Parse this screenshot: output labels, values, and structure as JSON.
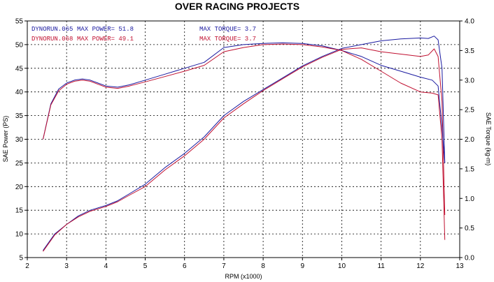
{
  "chart_data": {
    "type": "line",
    "title": "OVER RACING PROJECTS",
    "xlabel": "RPM  (x1000)",
    "ylabel_left": "SAE Power  (PS)",
    "ylabel_right": "SAE Torque  (kg-m)",
    "xlim": [
      2,
      13
    ],
    "ylim_left": [
      5,
      55
    ],
    "ylim_right": [
      0,
      4
    ],
    "x_ticks": [
      2,
      3,
      4,
      5,
      6,
      7,
      8,
      9,
      10,
      11,
      12,
      13
    ],
    "y_ticks_left": [
      5,
      10,
      15,
      20,
      25,
      30,
      35,
      40,
      45,
      50,
      55
    ],
    "y_ticks_right": [
      "0.0",
      "0.5",
      "1.0",
      "1.5",
      "2.0",
      "2.5",
      "3.0",
      "3.5",
      "4.0"
    ],
    "grid": true,
    "legend": [
      {
        "run": "DYNORUN.065",
        "power_text": "MAX POWER= 51.8",
        "torque_text": "MAX TORQUE= 3.7",
        "color": "#1a1aa0"
      },
      {
        "run": "DYNORUN.068",
        "power_text": "MAX POWER= 49.1",
        "torque_text": "MAX TORQUE= 3.7",
        "color": "#c01030"
      }
    ],
    "series": [
      {
        "name": "DYNORUN.065",
        "quantity": "power",
        "axis": "left",
        "color": "#1a1aa0",
        "x": [
          2.4,
          2.7,
          3.0,
          3.3,
          3.6,
          4.0,
          4.3,
          4.6,
          5.0,
          5.5,
          6.0,
          6.5,
          7.0,
          7.5,
          8.0,
          8.5,
          9.0,
          9.5,
          10.0,
          10.5,
          11.0,
          11.5,
          12.0,
          12.2,
          12.35,
          12.45,
          12.55,
          12.62
        ],
        "y": [
          6.5,
          10.0,
          12.0,
          13.8,
          15.0,
          16.0,
          17.0,
          18.5,
          20.5,
          24.0,
          27.0,
          30.5,
          35.0,
          38.0,
          40.5,
          43.0,
          45.5,
          47.5,
          49.2,
          50.0,
          50.8,
          51.2,
          51.4,
          51.3,
          51.8,
          51.0,
          45.0,
          25.0
        ]
      },
      {
        "name": "DYNORUN.068",
        "quantity": "power",
        "axis": "left",
        "color": "#c01030",
        "x": [
          2.4,
          2.7,
          3.0,
          3.3,
          3.6,
          4.0,
          4.3,
          4.6,
          5.0,
          5.5,
          6.0,
          6.5,
          7.0,
          7.5,
          8.0,
          8.5,
          9.0,
          9.5,
          10.0,
          10.5,
          11.0,
          11.5,
          12.0,
          12.2,
          12.35,
          12.45,
          12.55,
          12.62
        ],
        "y": [
          6.3,
          9.8,
          12.0,
          13.6,
          14.8,
          15.8,
          16.8,
          18.2,
          20.0,
          23.5,
          26.5,
          30.0,
          34.5,
          37.5,
          40.3,
          42.8,
          45.3,
          47.3,
          49.0,
          49.3,
          48.5,
          48.0,
          47.5,
          47.8,
          49.1,
          47.5,
          38.0,
          14.0
        ]
      },
      {
        "name": "DYNORUN.065",
        "quantity": "torque",
        "axis": "right",
        "color": "#1a1aa0",
        "x": [
          2.4,
          2.6,
          2.8,
          3.0,
          3.2,
          3.4,
          3.6,
          3.8,
          4.0,
          4.3,
          4.6,
          5.0,
          5.5,
          6.0,
          6.5,
          7.0,
          7.5,
          8.0,
          8.5,
          9.0,
          9.5,
          10.0,
          10.5,
          11.0,
          11.5,
          12.0,
          12.3,
          12.45,
          12.55,
          12.62
        ],
        "y": [
          2.0,
          2.6,
          2.85,
          2.95,
          3.0,
          3.02,
          3.0,
          2.95,
          2.9,
          2.88,
          2.92,
          3.0,
          3.1,
          3.2,
          3.3,
          3.55,
          3.6,
          3.62,
          3.63,
          3.62,
          3.58,
          3.5,
          3.4,
          3.25,
          3.15,
          3.05,
          3.0,
          2.9,
          2.2,
          1.6
        ]
      },
      {
        "name": "DYNORUN.068",
        "quantity": "torque",
        "axis": "right",
        "color": "#c01030",
        "x": [
          2.4,
          2.6,
          2.8,
          3.0,
          3.2,
          3.4,
          3.6,
          3.8,
          4.0,
          4.3,
          4.6,
          5.0,
          5.5,
          6.0,
          6.5,
          7.0,
          7.5,
          8.0,
          8.5,
          9.0,
          9.5,
          10.0,
          10.5,
          11.0,
          11.5,
          12.0,
          12.3,
          12.45,
          12.55,
          12.62
        ],
        "y": [
          2.0,
          2.58,
          2.82,
          2.93,
          2.98,
          3.0,
          2.98,
          2.93,
          2.88,
          2.86,
          2.9,
          2.97,
          3.06,
          3.15,
          3.25,
          3.48,
          3.55,
          3.6,
          3.61,
          3.6,
          3.56,
          3.5,
          3.35,
          3.15,
          2.95,
          2.8,
          2.78,
          2.75,
          2.0,
          0.3
        ]
      }
    ]
  }
}
